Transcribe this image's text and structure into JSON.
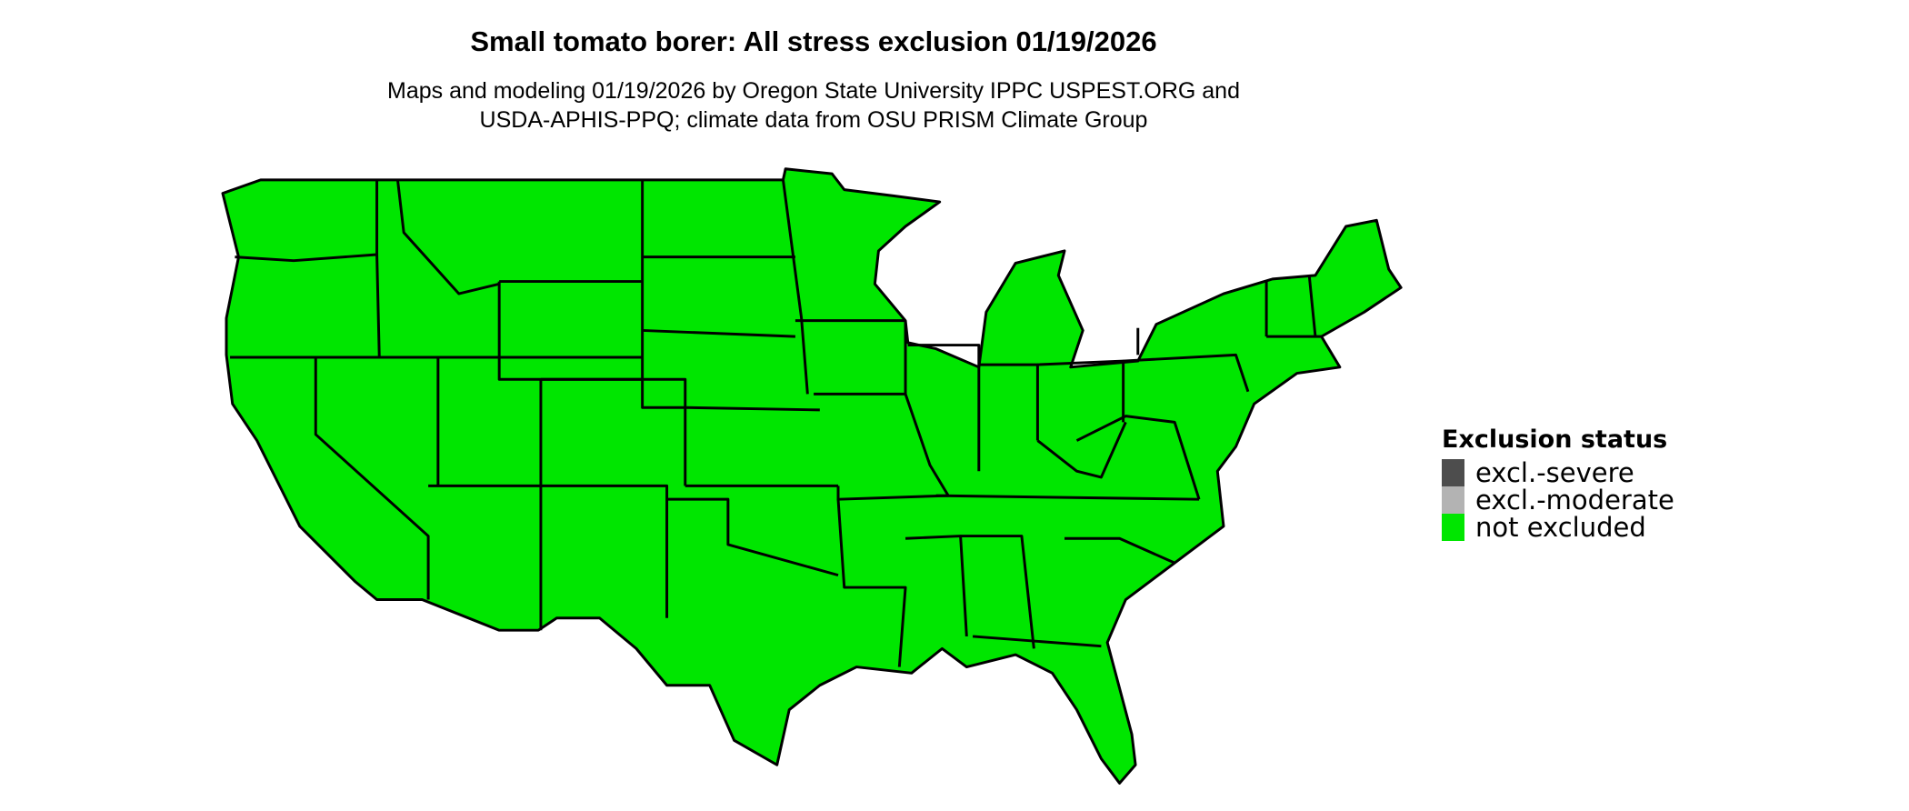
{
  "title": "Small tomato borer: All stress exclusion 01/19/2026",
  "subtitle_line1": "Maps and modeling 01/19/2026 by Oregon State University IPPC USPEST.ORG and",
  "subtitle_line2": "USDA-APHIS-PPQ; climate data from OSU PRISM Climate Group",
  "map": {
    "region": "contiguous United States",
    "fill_status": "not excluded",
    "fill_color": "#00e600"
  },
  "legend": {
    "title": "Exclusion status",
    "items": [
      {
        "label": "excl.-severe",
        "color": "#4d4d4d"
      },
      {
        "label": "excl.-moderate",
        "color": "#b3b3b3"
      },
      {
        "label": "not excluded",
        "color": "#00e600"
      }
    ]
  }
}
